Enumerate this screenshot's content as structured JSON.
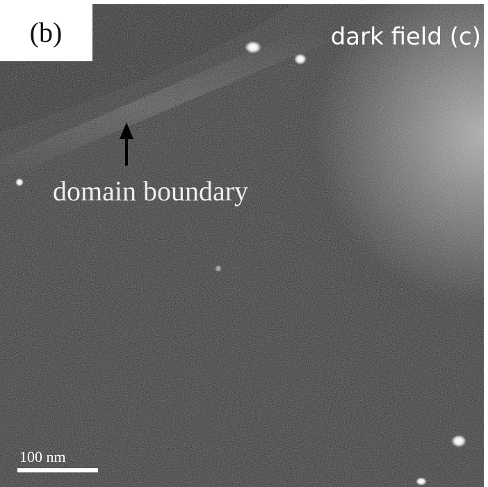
{
  "panel_label": "(b)",
  "mode_label": "dark field (c)",
  "annotation": "domain boundary",
  "scale_bar": "100 nm"
}
